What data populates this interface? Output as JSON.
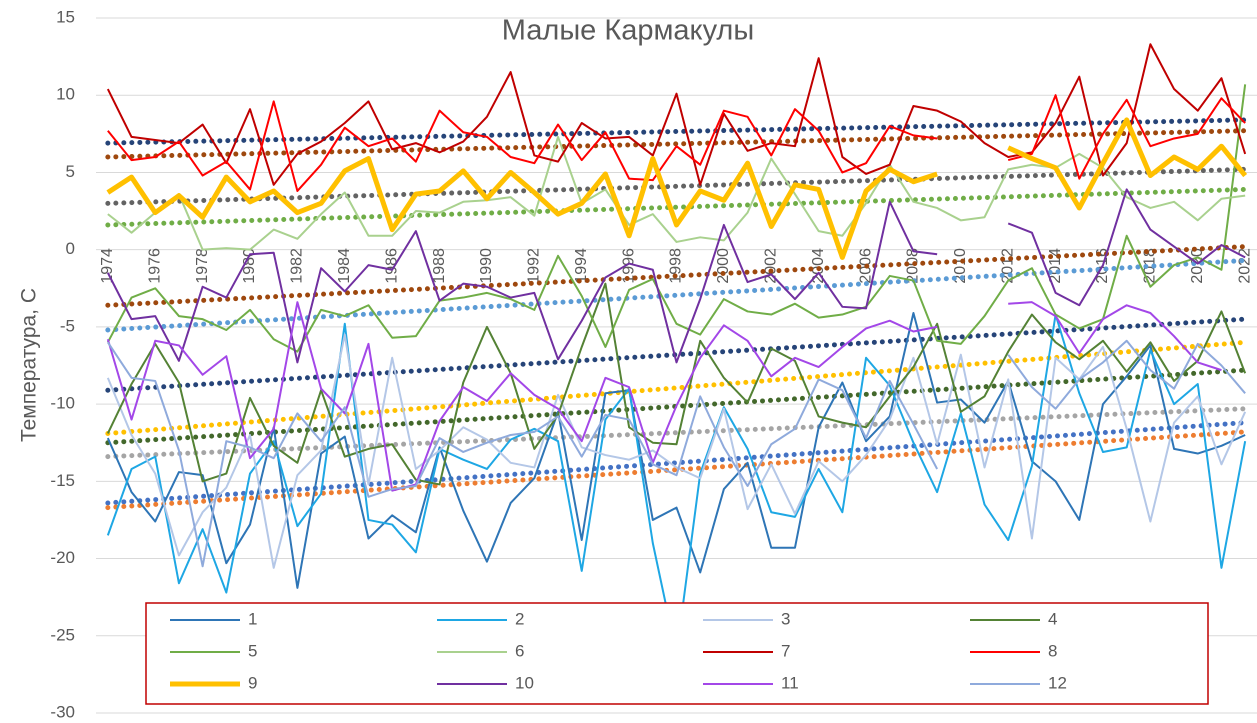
{
  "chart_data": {
    "type": "line",
    "title": "Малые Кармакулы",
    "y_label": "Температура, С",
    "x": [
      1974,
      1975,
      1976,
      1977,
      1978,
      1979,
      1980,
      1981,
      1982,
      1983,
      1984,
      1985,
      1986,
      1987,
      1988,
      1989,
      1990,
      1991,
      1992,
      1993,
      1994,
      1995,
      1996,
      1997,
      1998,
      1999,
      2000,
      2001,
      2002,
      2003,
      2004,
      2005,
      2006,
      2007,
      2008,
      2009,
      2010,
      2011,
      2012,
      2013,
      2014,
      2015,
      2016,
      2017,
      2018,
      2019,
      2020,
      2021,
      2022
    ],
    "xlim": [
      1973.5,
      2022.5
    ],
    "xticks": [
      1974,
      1976,
      1978,
      1980,
      1982,
      1984,
      1986,
      1988,
      1990,
      1992,
      1994,
      1996,
      1998,
      2000,
      2002,
      2004,
      2006,
      2008,
      2010,
      2012,
      2014,
      2016,
      2018,
      2020,
      2022
    ],
    "ylim": [
      -30,
      15
    ],
    "yticks": [
      -30,
      -25,
      -20,
      -15,
      -10,
      -5,
      0,
      5,
      10,
      15
    ],
    "grid": true,
    "series": [
      {
        "name": "1",
        "color": "#2e75b6",
        "trend": [
          -16.4,
          -11.2
        ],
        "trend_color": "#4472c4",
        "values": [
          -12.2,
          -15.7,
          -17.6,
          -14.4,
          -14.6,
          -20.3,
          -17.8,
          -11.5,
          -21.9,
          -13.2,
          -12.1,
          -18.7,
          -17.2,
          -18.3,
          -12.8,
          -16.9,
          -20.2,
          -16.4,
          -14.8,
          -10.5,
          -18.8,
          -9.3,
          -9.1,
          -17.5,
          -16.7,
          -20.9,
          -15.5,
          -13.8,
          -19.3,
          -19.3,
          -11.5,
          -8.6,
          -12.4,
          -10.8,
          -4.1,
          -9.9,
          -9.7,
          -11.2,
          -8.5,
          -13.7,
          -15.0,
          -17.5,
          -10.0,
          -8.2,
          -6.2,
          -12.9,
          -13.2,
          -12.7,
          -12.0
        ]
      },
      {
        "name": "2",
        "color": "#1ea7e4",
        "trend": [
          -16.7,
          -11.8
        ],
        "trend_color": "#ed7d31",
        "values": [
          -18.5,
          -14.2,
          -13.4,
          -21.6,
          -18.1,
          -22.2,
          -14.5,
          -12.4,
          -17.9,
          -15.8,
          -4.8,
          -17.5,
          -17.8,
          -19.6,
          -12.9,
          -13.6,
          -14.2,
          -12.3,
          -11.6,
          -12.4,
          -20.8,
          -11.0,
          -9.0,
          -19.0,
          -26.2,
          -14.5,
          -10.2,
          -12.9,
          -17.0,
          -17.3,
          -14.2,
          -17.0,
          -7.0,
          -8.8,
          -12.5,
          -15.7,
          -10.6,
          -16.5,
          -18.8,
          -14.0,
          -4.2,
          -9.3,
          -13.1,
          -12.8,
          -6.5,
          -10.0,
          -8.7,
          -20.6,
          -12.4
        ]
      },
      {
        "name": "3",
        "color": "#b4c7e7",
        "trend": [
          -13.4,
          -10.3
        ],
        "trend_color": "#a5a5a5",
        "values": [
          -8.3,
          -12.0,
          -14.5,
          -19.8,
          -17.0,
          -15.4,
          -12.0,
          -20.6,
          -14.6,
          -13.0,
          -5.5,
          -15.2,
          -7.0,
          -14.2,
          -13.0,
          -11.5,
          -12.3,
          -13.8,
          -14.1,
          -9.4,
          -12.8,
          -13.3,
          -13.6,
          -13.0,
          -14.1,
          -14.8,
          -10.3,
          -16.8,
          -13.9,
          -17.1,
          -13.7,
          -15.0,
          -13.3,
          -11.0,
          -7.0,
          -12.6,
          -6.8,
          -14.1,
          -8.4,
          -18.7,
          -7.0,
          -8.4,
          -6.3,
          -11.6,
          -17.6,
          -11.2,
          -9.5,
          -13.9,
          -10.5
        ]
      },
      {
        "name": "4",
        "color": "#548235",
        "trend": [
          -9.1,
          -4.5
        ],
        "trend_color": "#264478",
        "values": [
          -11.9,
          -8.7,
          -6.1,
          -8.6,
          -15.0,
          -14.5,
          -9.6,
          -12.7,
          -13.8,
          -9.1,
          -13.4,
          -12.9,
          -12.6,
          -14.9,
          -15.2,
          -8.6,
          -5.0,
          -8.0,
          -12.9,
          -10.7,
          -6.3,
          -2.2,
          -11.5,
          -12.5,
          -12.6,
          -5.9,
          -8.3,
          -9.9,
          -6.4,
          -7.2,
          -10.8,
          -11.2,
          -11.5,
          -9.5,
          -7.6,
          -4.8,
          -10.5,
          -9.5,
          -6.6,
          -4.2,
          -6.0,
          -7.1,
          -5.9,
          -7.9,
          -6.0,
          -8.5,
          -7.2,
          -4.0,
          -8.0
        ]
      },
      {
        "name": "5",
        "color": "#70ad47",
        "trend": [
          -3.6,
          0.2
        ],
        "trend_color": "#9e480e",
        "values": [
          -6.0,
          -3.1,
          -2.5,
          -4.3,
          -4.5,
          -5.2,
          -3.9,
          -5.8,
          -6.6,
          -3.9,
          -4.3,
          -3.6,
          -5.7,
          -5.6,
          -3.3,
          -3.1,
          -2.8,
          -3.2,
          -3.9,
          -0.4,
          -3.0,
          -6.3,
          -2.6,
          -1.9,
          -4.8,
          -5.5,
          -3.2,
          -4.0,
          -4.2,
          -3.5,
          -4.4,
          -4.2,
          -3.7,
          -1.7,
          -2.0,
          -5.9,
          -6.1,
          -4.3,
          -2.0,
          -1.2,
          -4.2,
          -5.1,
          -4.5,
          0.9,
          -2.4,
          -1.0,
          -0.5,
          -1.3,
          10.7
        ]
      },
      {
        "name": "6",
        "color": "#a9d18e",
        "trend": [
          1.6,
          3.9
        ],
        "trend_color": "#70ad47",
        "values": [
          2.3,
          1.1,
          2.4,
          3.6,
          0.0,
          0.1,
          0.0,
          1.3,
          0.7,
          2.3,
          3.7,
          0.9,
          0.9,
          2.5,
          2.4,
          3.1,
          3.2,
          3.4,
          2.2,
          7.3,
          3.0,
          3.9,
          1.6,
          2.3,
          0.5,
          0.8,
          0.6,
          2.4,
          5.9,
          3.6,
          1.2,
          0.9,
          3.0,
          5.5,
          3.1,
          2.7,
          1.9,
          2.1,
          5.2,
          5.5,
          5.3,
          6.2,
          5.3,
          3.4,
          2.7,
          3.1,
          1.9,
          3.3,
          3.5
        ]
      },
      {
        "name": "7",
        "color": "#c00000",
        "trend": [
          6.9,
          8.4
        ],
        "trend_color": "#264478",
        "values": [
          10.4,
          7.3,
          7.1,
          6.9,
          8.1,
          5.6,
          9.1,
          4.2,
          6.2,
          7.0,
          8.2,
          9.6,
          6.5,
          6.9,
          6.3,
          7.0,
          8.6,
          11.5,
          6.1,
          5.7,
          8.2,
          7.2,
          7.3,
          6.1,
          10.1,
          4.2,
          8.8,
          6.4,
          6.9,
          6.7,
          12.4,
          6.0,
          4.9,
          5.5,
          9.3,
          9.0,
          8.3,
          6.9,
          6.0,
          6.3,
          8.2,
          11.2,
          4.8,
          6.9,
          13.3,
          10.4,
          9.0,
          11.1,
          6.2
        ]
      },
      {
        "name": "8",
        "color": "#ff0000",
        "trend": [
          6.0,
          7.7
        ],
        "trend_color": "#9e480e",
        "values": [
          7.7,
          5.8,
          6.0,
          7.0,
          4.8,
          5.7,
          3.9,
          9.6,
          3.8,
          5.5,
          7.9,
          6.7,
          7.2,
          5.7,
          9.0,
          7.6,
          7.3,
          6.0,
          5.6,
          8.1,
          5.8,
          7.6,
          4.6,
          4.5,
          6.7,
          5.5,
          9.0,
          8.6,
          6.1,
          9.1,
          7.7,
          5.0,
          5.6,
          8.0,
          7.4,
          7.2,
          null,
          null,
          5.8,
          6.2,
          10.0,
          4.6,
          7.5,
          9.7,
          6.7,
          7.2,
          7.5,
          9.8,
          8.2
        ]
      },
      {
        "name": "9",
        "color": "#ffc000",
        "width": 5,
        "trend": [
          3.0,
          5.2
        ],
        "trend_color": "#636363",
        "values": [
          3.7,
          4.7,
          2.4,
          3.5,
          2.1,
          4.7,
          3.1,
          3.8,
          2.4,
          3.0,
          5.1,
          5.9,
          1.3,
          3.6,
          3.8,
          5.1,
          3.3,
          5.0,
          3.7,
          2.3,
          3.0,
          4.9,
          0.9,
          5.9,
          1.6,
          3.8,
          3.2,
          5.6,
          1.5,
          4.2,
          3.9,
          -0.5,
          3.8,
          5.2,
          4.4,
          4.9,
          null,
          null,
          6.6,
          5.9,
          5.3,
          2.7,
          5.6,
          8.4,
          4.8,
          6.0,
          5.2,
          6.7,
          4.8
        ]
      },
      {
        "name": "10",
        "color": "#7030a0",
        "trend": [
          -5.2,
          -0.7
        ],
        "trend_color": "#5b9bd5",
        "values": [
          -1.5,
          -4.5,
          -4.3,
          -7.2,
          -2.4,
          -3.1,
          -0.3,
          -0.2,
          -7.3,
          -1.2,
          -2.7,
          -1.0,
          -1.3,
          1.2,
          -3.3,
          -2.2,
          -2.4,
          -3.1,
          -2.8,
          -7.1,
          -4.6,
          -1.8,
          -0.9,
          -1.3,
          -7.3,
          -3.2,
          1.6,
          -2.1,
          -1.6,
          -3.2,
          -1.5,
          -3.7,
          -3.8,
          3.1,
          -0.1,
          -0.3,
          null,
          null,
          1.7,
          1.1,
          -2.8,
          -3.6,
          -1.0,
          3.9,
          1.3,
          0.2,
          -0.9,
          0.3,
          -0.5
        ]
      },
      {
        "name": "11",
        "color": "#a347e8",
        "trend": [
          -11.9,
          -6.0
        ],
        "trend_color": "#ffc000",
        "values": [
          -5.8,
          -11.0,
          -5.9,
          -6.2,
          -8.1,
          -6.9,
          -13.5,
          -11.6,
          -3.4,
          -9.0,
          -10.6,
          -6.1,
          -15.6,
          -15.2,
          -11.1,
          -8.9,
          -9.8,
          -8.0,
          -9.4,
          -10.3,
          -12.4,
          -8.3,
          -8.9,
          -13.8,
          -10.1,
          -7.0,
          -4.9,
          -5.9,
          -8.2,
          -7.0,
          -7.6,
          -6.3,
          -5.1,
          -4.6,
          -5.3,
          -5.0,
          null,
          null,
          -3.5,
          -3.4,
          -4.3,
          -6.7,
          -4.5,
          -3.6,
          -4.1,
          -5.6,
          -7.3,
          -7.8,
          null
        ]
      },
      {
        "name": "12",
        "color": "#8faadc",
        "trend": [
          -12.5,
          -7.8
        ],
        "trend_color": "#43682b",
        "values": [
          -6.0,
          -8.3,
          -8.5,
          -13.0,
          -20.5,
          -12.4,
          -12.8,
          -13.5,
          -10.6,
          -12.4,
          -10.2,
          -16.0,
          -15.5,
          -15.3,
          -12.2,
          -13.1,
          -12.5,
          -12.0,
          -11.8,
          -10.8,
          -13.4,
          -10.7,
          -11.0,
          -13.9,
          -14.6,
          -9.5,
          -12.8,
          -15.3,
          -12.6,
          -11.6,
          -8.4,
          -9.1,
          -12.2,
          -8.5,
          -11.3,
          -14.2,
          null,
          null,
          -6.8,
          -8.9,
          -10.3,
          -8.4,
          -7.3,
          -5.9,
          -7.8,
          -9.0,
          -6.1,
          -7.5,
          -9.3
        ]
      }
    ]
  }
}
